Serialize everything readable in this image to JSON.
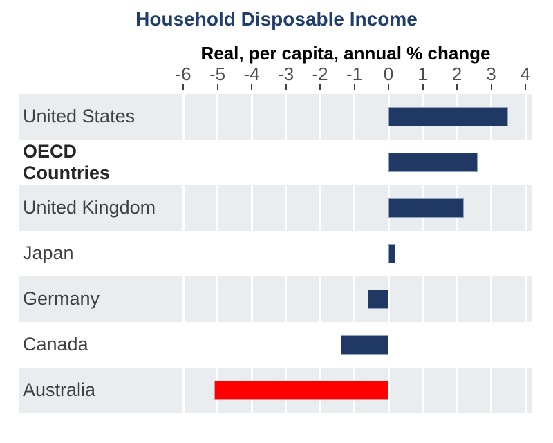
{
  "chart_data": {
    "type": "bar",
    "orientation": "horizontal",
    "title": "Household Disposable Income",
    "subtitle": "Real, per capita, annual % change",
    "categories": [
      "United States",
      "OECD Countries",
      "United Kingdom",
      "Japan",
      "Germany",
      "Canada",
      "Australia"
    ],
    "category_display": [
      "United States",
      "OECD\nCountries",
      "United Kingdom",
      "Japan",
      "Germany",
      "Canada",
      "Australia"
    ],
    "bold_category_index": 1,
    "values": [
      3.5,
      2.6,
      2.2,
      0.2,
      -0.6,
      -1.4,
      -5.1
    ],
    "xticks": [
      -6,
      -5,
      -4,
      -3,
      -2,
      -1,
      0,
      1,
      2,
      3,
      4
    ],
    "xlim": [
      -6.5,
      4.2
    ],
    "xlabel": "",
    "ylabel": "",
    "legend": null,
    "grid": "vertical white gridlines at each tick over shaded row bands",
    "shaded_row_indices": [
      0,
      2,
      4,
      6
    ],
    "bar_colors": [
      "#1f3864",
      "#1f3864",
      "#1f3864",
      "#1f3864",
      "#1f3864",
      "#1f3864",
      "#ff0000"
    ],
    "bar_border_colors": [
      "#8ea3bc",
      "#8ea3bc",
      "#8ea3bc",
      "#8ea3bc",
      "#8ea3bc",
      "#8ea3bc",
      "#ff8f8f"
    ],
    "highlight_category": "Australia",
    "colors": {
      "bar_default": "#1f3864",
      "bar_highlight": "#ff0000",
      "row_band": "#e9edf0",
      "title": "#1f3d6d",
      "subtitle": "#000000",
      "tick_label": "#4d4d4d",
      "tick_mark": "#404040",
      "category_label": "#404040",
      "bold_category_label": "#262626",
      "background": "#ffffff"
    }
  }
}
